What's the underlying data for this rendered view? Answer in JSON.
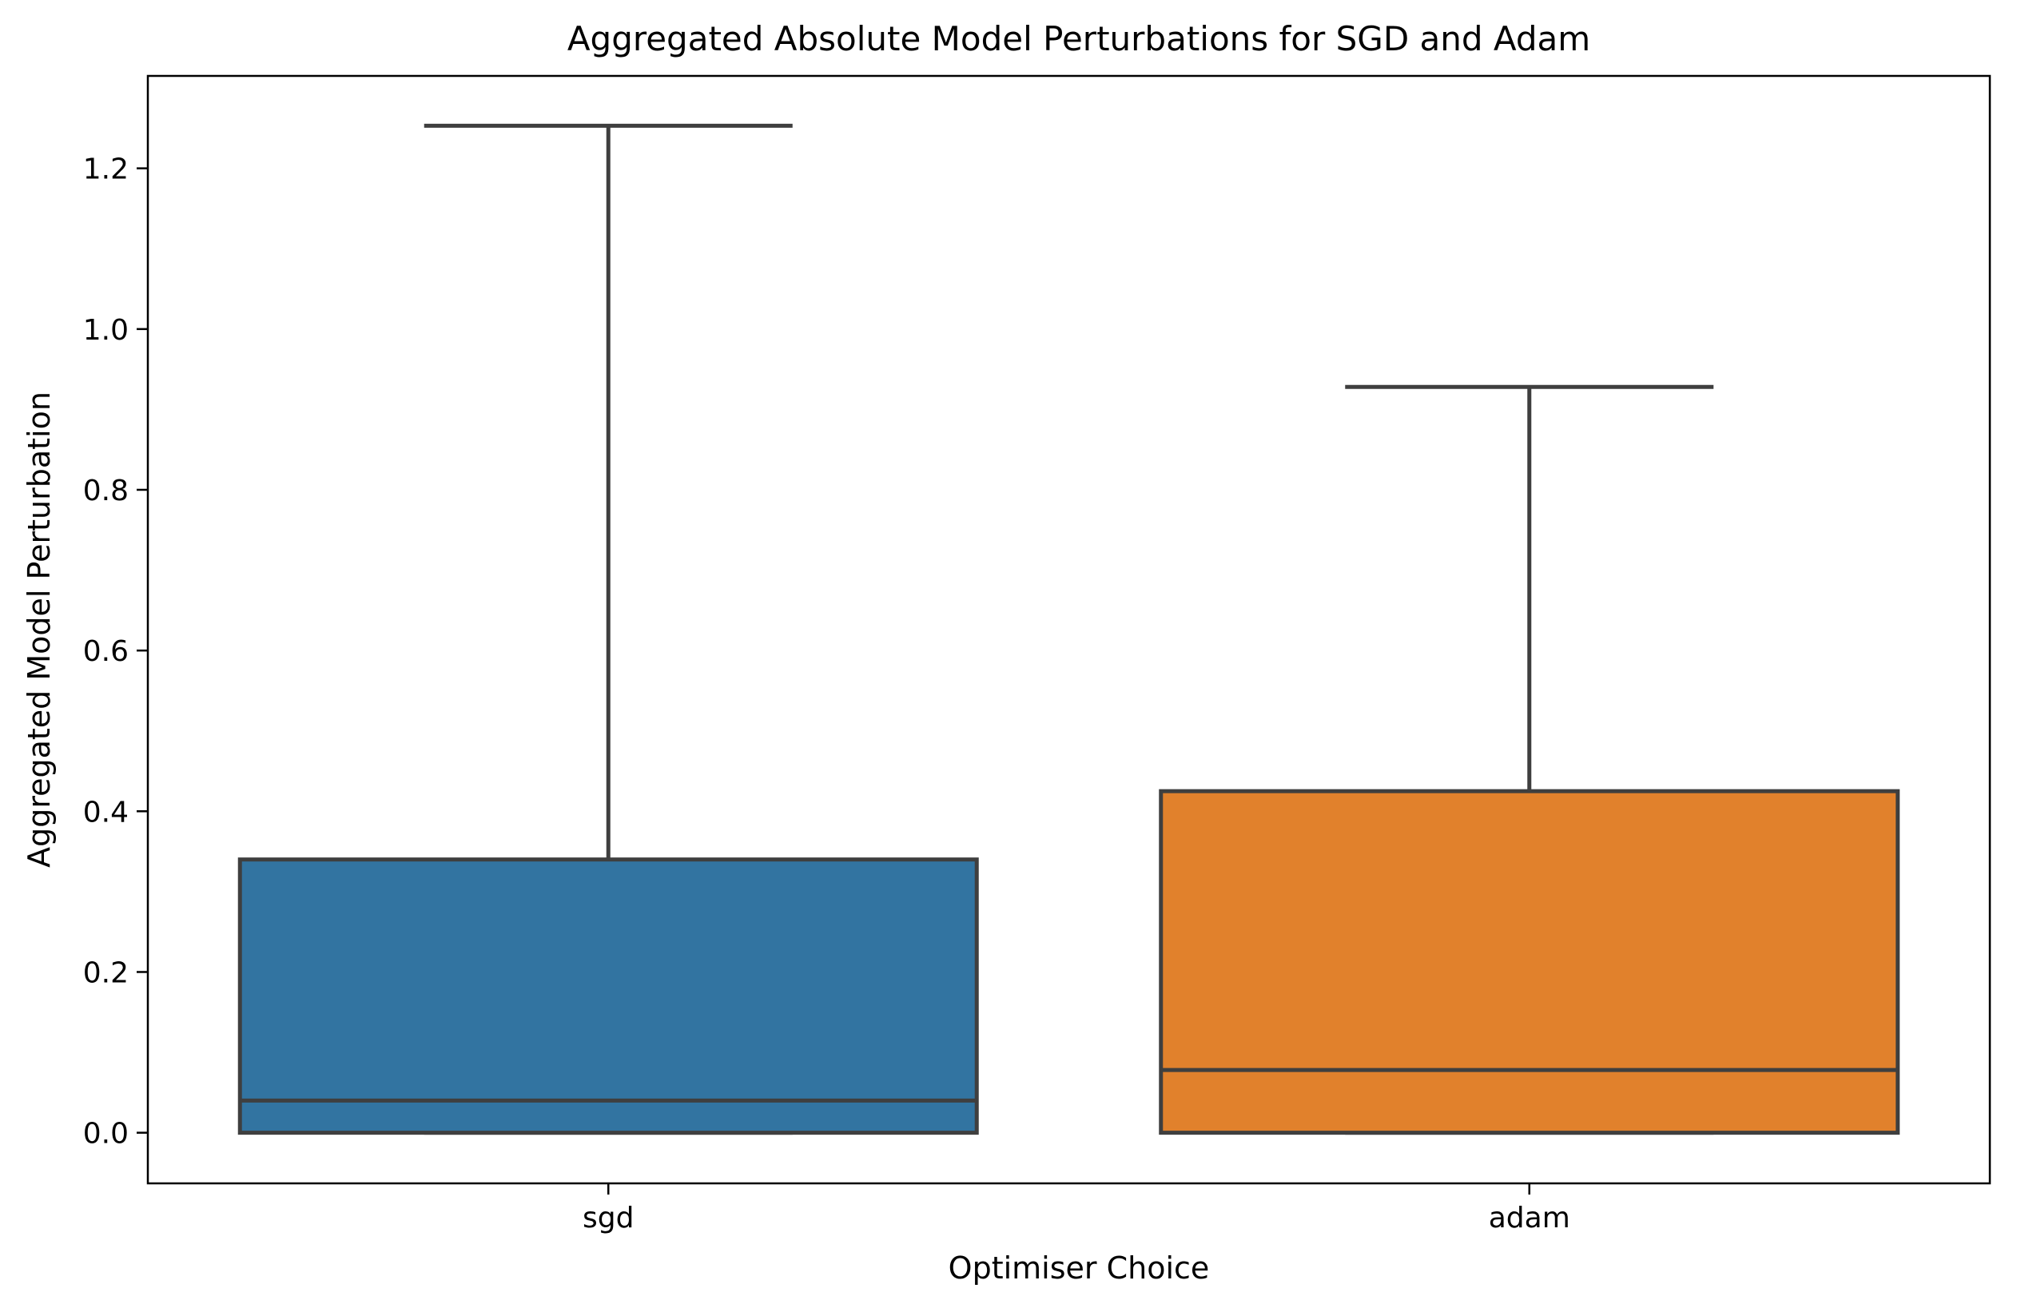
{
  "chart_data": {
    "type": "box",
    "title": "Aggregated Absolute Model Perturbations for SGD and Adam",
    "xlabel": "Optimiser Choice",
    "ylabel": "Aggregated Model Perturbation",
    "ylim": [
      -0.063,
      1.315
    ],
    "yticks": [
      0.0,
      0.2,
      0.4,
      0.6,
      0.8,
      1.0,
      1.2
    ],
    "ytick_labels": [
      "0.0",
      "0.2",
      "0.4",
      "0.6",
      "0.8",
      "1.0",
      "1.2"
    ],
    "categories": [
      "sgd",
      "adam"
    ],
    "grid": false,
    "boxes": [
      {
        "category": "sgd",
        "color": "#3274a1",
        "whisker_low": 0.0,
        "q1": 0.0,
        "median": 0.04,
        "q3": 0.34,
        "whisker_high": 1.253
      },
      {
        "category": "adam",
        "color": "#e1812c",
        "whisker_low": 0.0,
        "q1": 0.0,
        "median": 0.078,
        "q3": 0.425,
        "whisker_high": 0.928
      }
    ],
    "edge_color": "#3f3f3f"
  }
}
